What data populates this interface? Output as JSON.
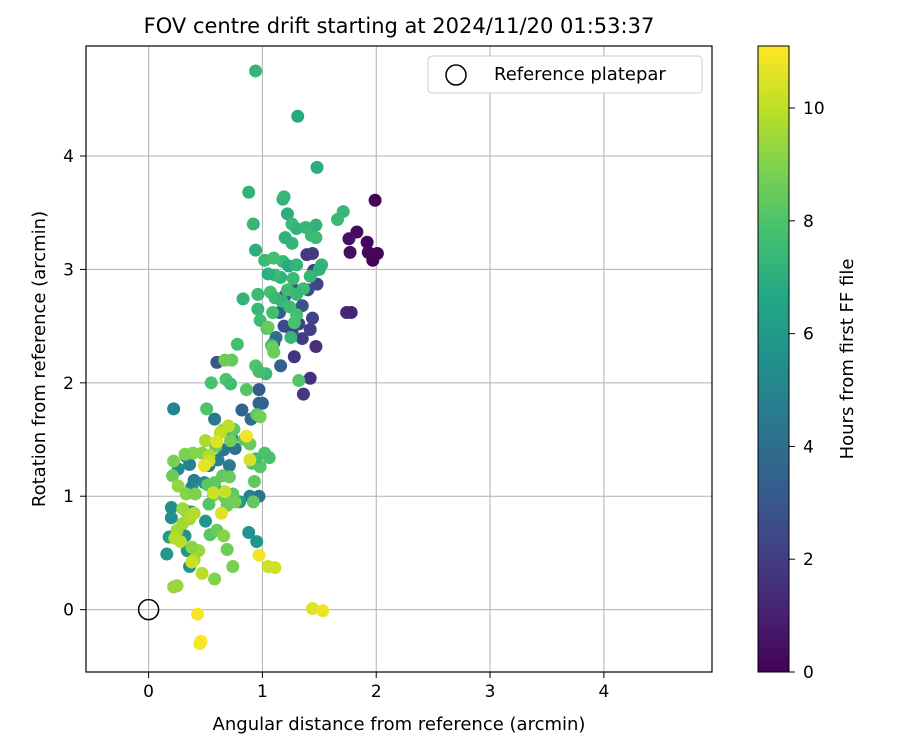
{
  "chart_data": {
    "type": "scatter",
    "title": "FOV centre drift starting at 2024/11/20 01:53:37",
    "xlabel": "Angular distance from reference (arcmin)",
    "ylabel": "Rotation from reference (arcmin)",
    "xlim": [
      -0.55,
      4.95
    ],
    "ylim": [
      -0.55,
      4.97
    ],
    "xticks": [
      0,
      1,
      2,
      3,
      4
    ],
    "yticks": [
      0,
      1,
      2,
      3,
      4
    ],
    "grid": true,
    "legend": {
      "position": "top-right",
      "entries": [
        "Reference platepar"
      ]
    },
    "reference_point": {
      "label": "Reference platepar",
      "x": 0,
      "y": 0
    },
    "colorbar": {
      "label": "Hours from first FF file",
      "min": 0,
      "max": 11.1,
      "ticks": [
        0,
        2,
        4,
        6,
        8,
        10
      ],
      "colormap": "viridis"
    },
    "points": [
      [
        1.99,
        3.61,
        0.1
      ],
      [
        1.97,
        3.08,
        0.1
      ],
      [
        2.01,
        3.14,
        0.1
      ],
      [
        1.92,
        3.24,
        0.2
      ],
      [
        1.83,
        3.33,
        0.3
      ],
      [
        1.76,
        3.27,
        0.5
      ],
      [
        1.77,
        3.15,
        0.4
      ],
      [
        1.93,
        3.15,
        0.2
      ],
      [
        1.74,
        2.62,
        1.2
      ],
      [
        1.78,
        2.62,
        1.1
      ],
      [
        1.47,
        2.32,
        1.5
      ],
      [
        1.42,
        2.04,
        1.6
      ],
      [
        1.36,
        1.9,
        1.8
      ],
      [
        1.28,
        2.23,
        1.7
      ],
      [
        1.35,
        2.39,
        1.9
      ],
      [
        1.42,
        2.47,
        2.0
      ],
      [
        1.44,
        2.57,
        2.1
      ],
      [
        1.32,
        2.52,
        2.2
      ],
      [
        1.26,
        2.45,
        2.4
      ],
      [
        1.19,
        2.5,
        2.5
      ],
      [
        1.1,
        2.35,
        2.6
      ],
      [
        1.39,
        3.13,
        1.8
      ],
      [
        1.44,
        3.14,
        1.9
      ],
      [
        1.45,
        2.99,
        2.0
      ],
      [
        1.48,
        2.87,
        2.3
      ],
      [
        1.4,
        2.82,
        2.6
      ],
      [
        1.35,
        2.68,
        2.8
      ],
      [
        1.15,
        2.62,
        3.2
      ],
      [
        1.2,
        2.77,
        3.0
      ],
      [
        1.28,
        2.82,
        3.3
      ],
      [
        0.6,
        2.18,
        3.0
      ],
      [
        0.97,
        1.94,
        3.2
      ],
      [
        0.97,
        1.82,
        3.4
      ],
      [
        1.0,
        1.82,
        3.6
      ],
      [
        0.9,
        1.68,
        3.8
      ],
      [
        0.82,
        1.76,
        3.6
      ],
      [
        1.16,
        2.15,
        3.5
      ],
      [
        1.12,
        2.4,
        4.0
      ],
      [
        0.58,
        1.68,
        4.5
      ],
      [
        0.59,
        1.45,
        4.3
      ],
      [
        0.66,
        1.41,
        4.4
      ],
      [
        0.73,
        1.51,
        4.6
      ],
      [
        0.76,
        1.42,
        4.2
      ],
      [
        0.61,
        1.32,
        4.8
      ],
      [
        0.53,
        1.27,
        4.5
      ],
      [
        0.33,
        1.35,
        4.8
      ],
      [
        0.36,
        1.28,
        4.9
      ],
      [
        0.4,
        1.14,
        4.7
      ],
      [
        0.38,
        1.08,
        5.0
      ],
      [
        0.49,
        1.12,
        5.1
      ],
      [
        0.6,
        1.05,
        4.4
      ],
      [
        0.71,
        1.27,
        4.6
      ],
      [
        0.89,
        1.0,
        4.8
      ],
      [
        0.97,
        1.0,
        4.2
      ],
      [
        0.22,
        1.77,
        5.0
      ],
      [
        0.26,
        1.24,
        5.4
      ],
      [
        0.33,
        0.87,
        5.2
      ],
      [
        0.38,
        0.86,
        5.3
      ],
      [
        0.2,
        0.9,
        5.4
      ],
      [
        0.2,
        0.81,
        5.5
      ],
      [
        0.32,
        0.65,
        5.6
      ],
      [
        0.34,
        0.52,
        5.8
      ],
      [
        0.36,
        0.38,
        5.7
      ],
      [
        0.16,
        0.49,
        5.9
      ],
      [
        0.5,
        0.78,
        5.8
      ],
      [
        0.88,
        0.68,
        5.6
      ],
      [
        0.95,
        0.6,
        5.8
      ],
      [
        0.8,
        0.95,
        6.0
      ],
      [
        0.18,
        0.64,
        6.2
      ],
      [
        0.94,
        4.75,
        7.3
      ],
      [
        1.31,
        4.35,
        6.8
      ],
      [
        1.48,
        3.9,
        7.0
      ],
      [
        0.88,
        3.68,
        7.2
      ],
      [
        0.92,
        3.4,
        7.3
      ],
      [
        0.94,
        3.17,
        7.0
      ],
      [
        1.18,
        3.62,
        7.1
      ],
      [
        1.19,
        3.64,
        7.4
      ],
      [
        1.22,
        3.49,
        7.0
      ],
      [
        1.26,
        3.4,
        7.5
      ],
      [
        1.3,
        3.36,
        7.2
      ],
      [
        1.38,
        3.37,
        7.3
      ],
      [
        1.43,
        3.3,
        7.5
      ],
      [
        1.47,
        3.39,
        7.2
      ],
      [
        1.47,
        3.28,
        7.6
      ],
      [
        1.26,
        3.23,
        7.3
      ],
      [
        1.2,
        3.28,
        7.1
      ],
      [
        1.18,
        3.07,
        7.4
      ],
      [
        1.23,
        3.03,
        6.9
      ],
      [
        1.3,
        3.04,
        7.3
      ],
      [
        1.27,
        2.92,
        7.5
      ],
      [
        1.16,
        2.93,
        7.2
      ],
      [
        1.11,
        2.95,
        7.5
      ],
      [
        1.05,
        2.96,
        7.0
      ],
      [
        1.02,
        3.08,
        7.5
      ],
      [
        1.1,
        3.1,
        7.7
      ],
      [
        1.52,
        3.04,
        7.3
      ],
      [
        1.5,
        3.0,
        7.1
      ],
      [
        1.42,
        2.94,
        7.3
      ],
      [
        1.36,
        2.83,
        7.6
      ],
      [
        1.3,
        2.78,
        7.4
      ],
      [
        1.22,
        2.82,
        7.6
      ],
      [
        1.07,
        2.8,
        7.8
      ],
      [
        0.96,
        2.78,
        7.5
      ],
      [
        0.83,
        2.74,
        7.2
      ],
      [
        0.96,
        2.65,
        7.4
      ],
      [
        0.98,
        2.55,
        7.6
      ],
      [
        1.04,
        2.48,
        7.8
      ],
      [
        1.09,
        2.62,
        7.7
      ],
      [
        1.11,
        2.75,
        7.5
      ],
      [
        1.17,
        2.72,
        7.3
      ],
      [
        1.24,
        2.67,
        7.6
      ],
      [
        1.3,
        2.6,
        7.8
      ],
      [
        1.28,
        2.53,
        7.9
      ],
      [
        1.25,
        2.4,
        7.3
      ],
      [
        1.08,
        2.33,
        7.6
      ],
      [
        1.03,
        2.08,
        7.5
      ],
      [
        0.94,
        2.15,
        8.0
      ],
      [
        0.97,
        2.1,
        7.8
      ],
      [
        1.71,
        3.51,
        7.4
      ],
      [
        1.66,
        3.44,
        7.5
      ],
      [
        0.78,
        2.34,
        7.8
      ],
      [
        1.09,
        2.31,
        8.7
      ],
      [
        1.1,
        2.27,
        8.6
      ],
      [
        1.05,
        2.49,
        8.5
      ],
      [
        1.32,
        2.02,
        8.1
      ],
      [
        0.73,
        2.2,
        8.4
      ],
      [
        0.67,
        2.2,
        8.6
      ],
      [
        0.68,
        2.03,
        8.0
      ],
      [
        0.55,
        2.0,
        7.9
      ],
      [
        0.72,
        1.99,
        7.7
      ],
      [
        0.86,
        1.94,
        8.1
      ],
      [
        0.95,
        1.72,
        8.3
      ],
      [
        0.98,
        1.7,
        8.7
      ],
      [
        0.51,
        1.77,
        8.0
      ],
      [
        0.75,
        1.59,
        8.3
      ],
      [
        0.72,
        1.49,
        8.7
      ],
      [
        0.84,
        1.5,
        8.2
      ],
      [
        0.89,
        1.46,
        8.5
      ],
      [
        0.65,
        1.58,
        9.0
      ],
      [
        0.59,
        1.44,
        8.7
      ],
      [
        0.53,
        1.35,
        8.8
      ],
      [
        0.47,
        1.38,
        9.0
      ],
      [
        0.39,
        1.38,
        9.1
      ],
      [
        0.32,
        1.37,
        8.9
      ],
      [
        0.22,
        1.31,
        8.8
      ],
      [
        0.21,
        1.18,
        8.6
      ],
      [
        0.26,
        1.09,
        9.3
      ],
      [
        0.33,
        1.02,
        9.1
      ],
      [
        0.41,
        1.02,
        8.9
      ],
      [
        0.52,
        1.1,
        8.2
      ],
      [
        0.57,
        1.01,
        8.7
      ],
      [
        0.58,
        1.12,
        8.3
      ],
      [
        0.65,
        1.18,
        8.4
      ],
      [
        0.71,
        1.17,
        8.5
      ],
      [
        0.74,
        1.02,
        8.3
      ],
      [
        0.67,
        0.99,
        8.5
      ],
      [
        0.69,
        0.92,
        8.6
      ],
      [
        0.76,
        0.95,
        8.7
      ],
      [
        0.92,
        0.95,
        8.4
      ],
      [
        0.93,
        1.13,
        8.3
      ],
      [
        0.91,
        1.29,
        8.0
      ],
      [
        0.98,
        1.26,
        8.2
      ],
      [
        1.02,
        1.38,
        8.0
      ],
      [
        1.06,
        1.34,
        7.9
      ],
      [
        0.94,
        1.33,
        7.8
      ],
      [
        0.53,
        0.93,
        8.1
      ],
      [
        0.54,
        0.66,
        8.2
      ],
      [
        0.6,
        0.7,
        8.5
      ],
      [
        0.66,
        0.65,
        9.1
      ],
      [
        0.69,
        0.53,
        8.6
      ],
      [
        0.74,
        0.38,
        8.8
      ],
      [
        0.58,
        0.27,
        9.0
      ],
      [
        0.44,
        0.52,
        9.4
      ],
      [
        0.38,
        0.55,
        9.1
      ],
      [
        0.4,
        0.44,
        9.6
      ],
      [
        0.36,
        0.8,
        9.3
      ],
      [
        0.3,
        0.76,
        9.5
      ],
      [
        0.25,
        0.7,
        9.6
      ],
      [
        0.23,
        0.63,
        9.8
      ],
      [
        0.28,
        0.6,
        9.9
      ],
      [
        0.3,
        0.89,
        9.5
      ],
      [
        0.22,
        0.2,
        9.3
      ],
      [
        0.25,
        0.21,
        9.4
      ],
      [
        0.36,
        0.82,
        9.7
      ],
      [
        0.4,
        0.85,
        9.8
      ],
      [
        0.53,
        1.36,
        9.8
      ],
      [
        0.5,
        1.49,
        9.7
      ],
      [
        0.63,
        1.56,
        10.0
      ],
      [
        0.6,
        1.48,
        10.5
      ],
      [
        0.53,
        1.31,
        10.2
      ],
      [
        0.49,
        1.27,
        10.7
      ],
      [
        0.57,
        1.03,
        10.3
      ],
      [
        0.64,
        0.85,
        10.6
      ],
      [
        0.67,
        1.04,
        10.1
      ],
      [
        0.47,
        0.32,
        9.9
      ],
      [
        0.38,
        0.42,
        10.2
      ],
      [
        0.97,
        0.48,
        10.9
      ],
      [
        1.05,
        0.38,
        10.2
      ],
      [
        1.11,
        0.37,
        10.3
      ],
      [
        0.86,
        1.53,
        10.9
      ],
      [
        0.89,
        1.32,
        10.4
      ],
      [
        0.7,
        1.62,
        10.0
      ],
      [
        1.44,
        0.01,
        10.6
      ],
      [
        1.53,
        -0.01,
        10.8
      ],
      [
        0.43,
        -0.04,
        11.0
      ],
      [
        0.46,
        -0.28,
        11.1
      ],
      [
        0.45,
        -0.3,
        11.0
      ]
    ]
  }
}
